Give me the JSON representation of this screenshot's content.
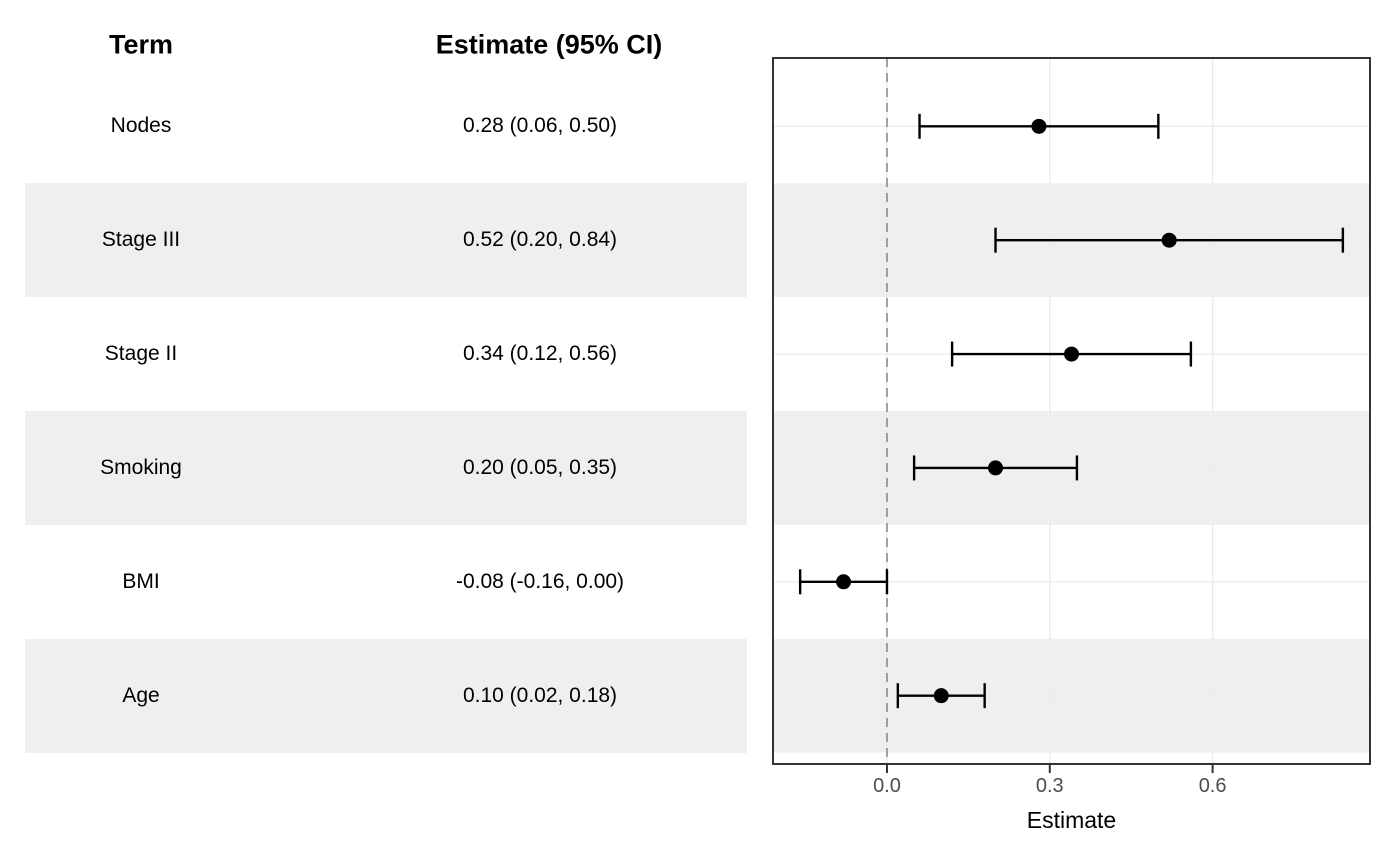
{
  "table": {
    "headers": {
      "term": "Term",
      "estimate": "Estimate (95% CI)"
    }
  },
  "chart_data": {
    "type": "scatter",
    "variant": "forest-plot",
    "title": "",
    "xlabel": "Estimate",
    "ylabel": "",
    "xlim": [
      -0.21,
      0.89
    ],
    "x_ticks": [
      0.0,
      0.3,
      0.6
    ],
    "x_tick_labels": [
      "0.0",
      "0.3",
      "0.6"
    ],
    "reference_line": 0.0,
    "grid": "major-only",
    "rows": [
      {
        "term": "Nodes",
        "estimate": 0.28,
        "ci_low": 0.06,
        "ci_high": 0.5,
        "ci_label": "0.28 (0.06, 0.50)",
        "shaded": false
      },
      {
        "term": "Stage III",
        "estimate": 0.52,
        "ci_low": 0.2,
        "ci_high": 0.84,
        "ci_label": "0.52 (0.20, 0.84)",
        "shaded": true
      },
      {
        "term": "Stage II",
        "estimate": 0.34,
        "ci_low": 0.12,
        "ci_high": 0.56,
        "ci_label": "0.34 (0.12, 0.56)",
        "shaded": false
      },
      {
        "term": "Smoking",
        "estimate": 0.2,
        "ci_low": 0.05,
        "ci_high": 0.35,
        "ci_label": "0.20 (0.05, 0.35)",
        "shaded": true
      },
      {
        "term": "BMI",
        "estimate": -0.08,
        "ci_low": -0.16,
        "ci_high": 0.0,
        "ci_label": "-0.08 (-0.16, 0.00)",
        "shaded": false
      },
      {
        "term": "Age",
        "estimate": 0.1,
        "ci_low": 0.02,
        "ci_high": 0.18,
        "ci_label": "0.10 (0.02, 0.18)",
        "shaded": true
      }
    ]
  },
  "colors": {
    "background": "#FFFFFF",
    "band": "#EFEFEF",
    "panel_border": "#333333",
    "gridline": "#EBEBEB",
    "reference_line": "#8C8C8C",
    "tick": "#333333",
    "tick_label": "#4D4D4D",
    "data": "#000000",
    "axis_title": "#000000"
  }
}
